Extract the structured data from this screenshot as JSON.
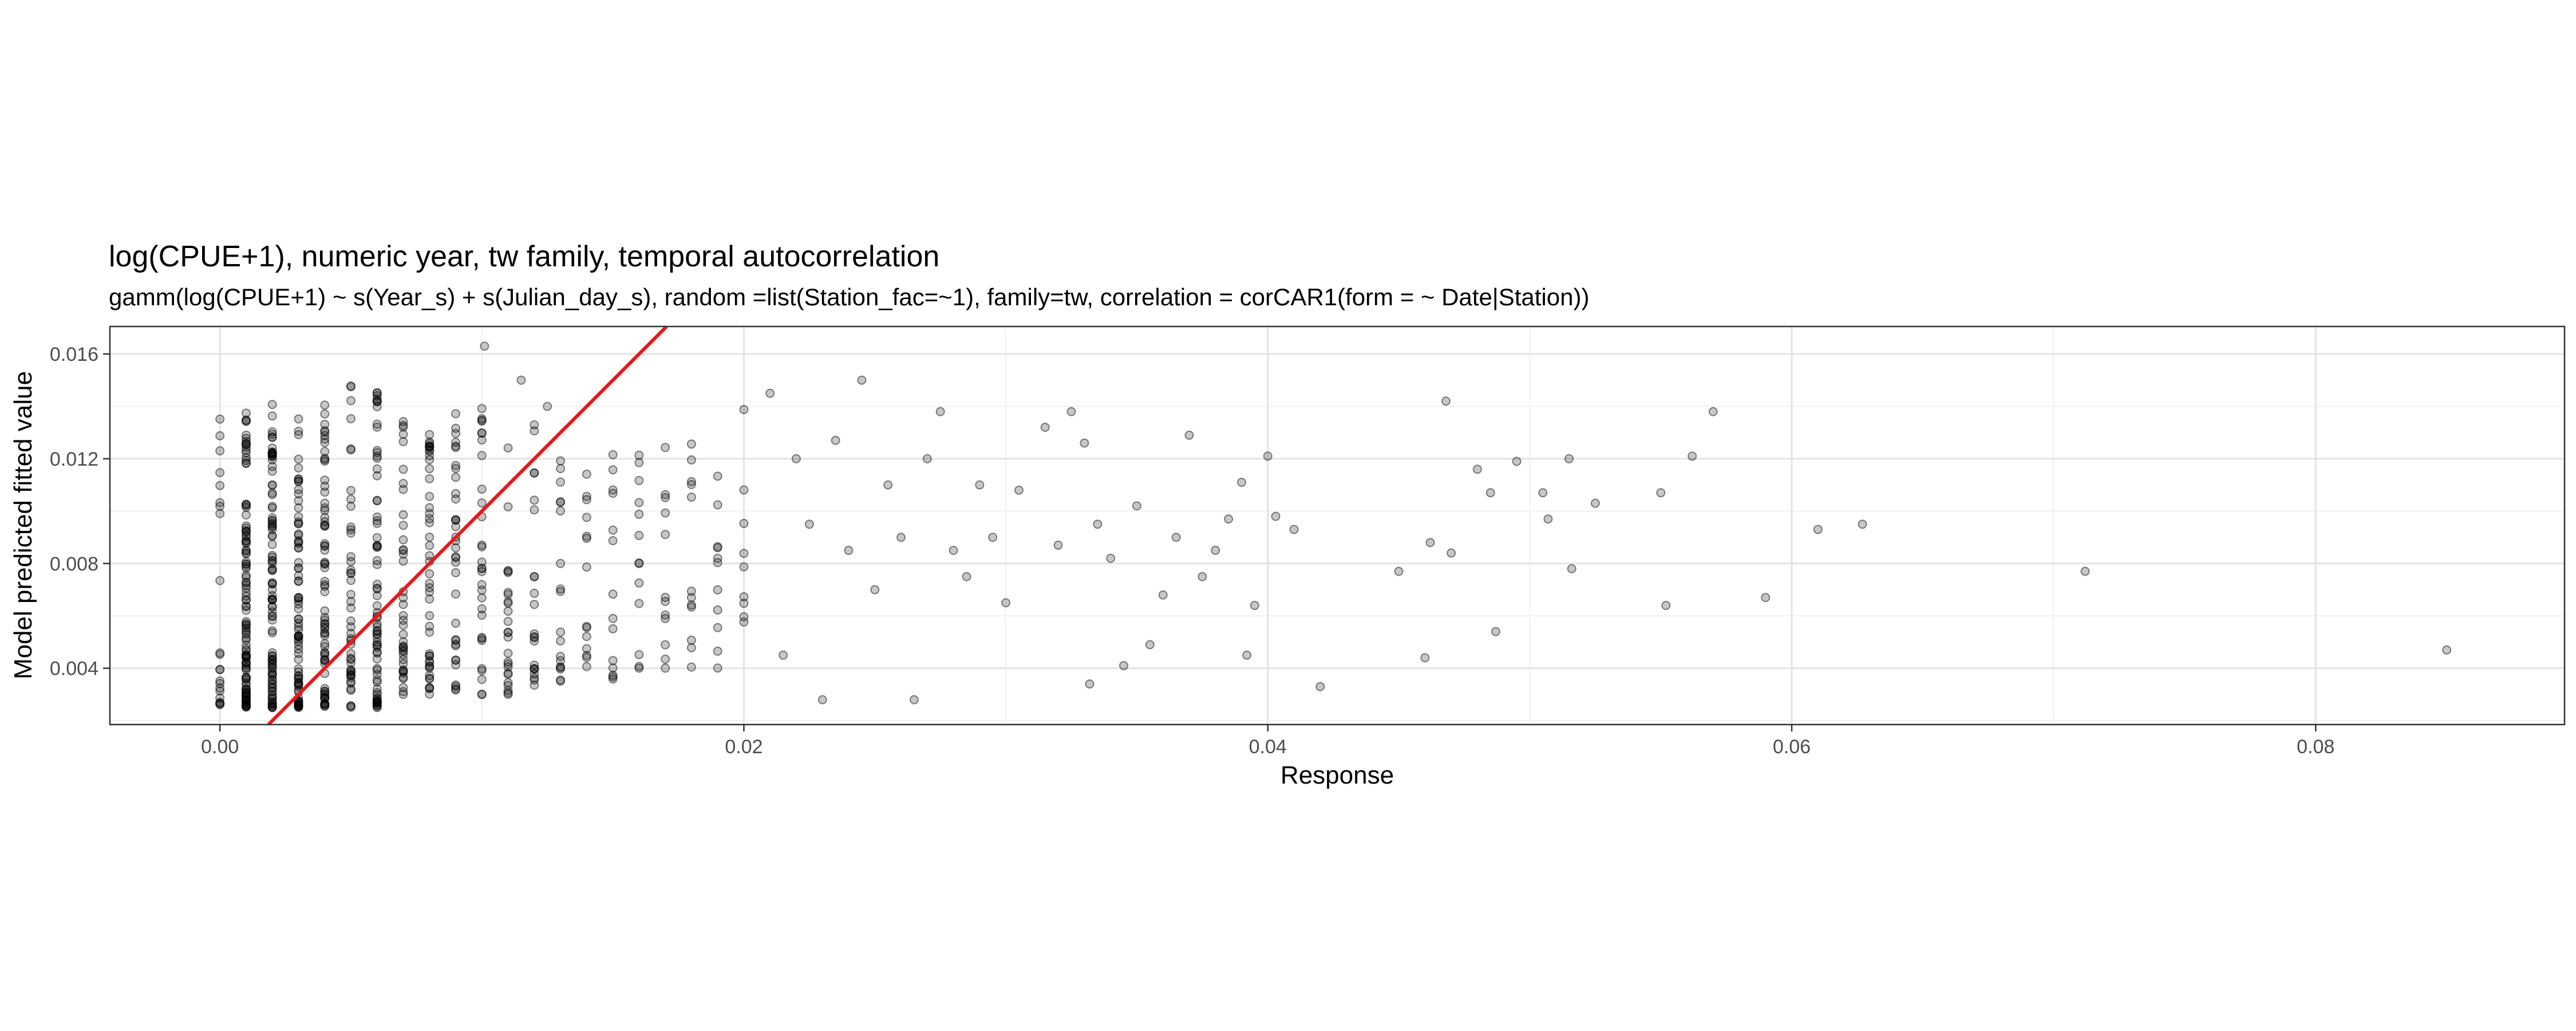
{
  "chart_data": {
    "type": "scatter",
    "title": "log(CPUE+1), numeric year, tw family, temporal autocorrelation",
    "subtitle": "gamm(log(CPUE+1) ~ s(Year_s) + s(Julian_day_s), random =list(Station_fac=~1), family=tw, correlation = corCAR1(form = ~ Date|Station))",
    "xlabel": "Response",
    "ylabel": "Model predicted fitted value",
    "xlim": [
      -0.0042,
      0.0895
    ],
    "ylim": [
      0.00185,
      0.01705
    ],
    "x_ticks": [
      0.0,
      0.02,
      0.04,
      0.06,
      0.08
    ],
    "x_tick_labels": [
      "0.00",
      "0.02",
      "0.04",
      "0.06",
      "0.08"
    ],
    "y_ticks": [
      0.004,
      0.008,
      0.012,
      0.016
    ],
    "y_tick_labels": [
      "0.004",
      "0.008",
      "0.012",
      "0.016"
    ],
    "grid": true,
    "reference_line": {
      "slope": 1,
      "intercept": 0,
      "color": "#e41a1c"
    },
    "point_color": "#000000",
    "point_alpha": 0.22,
    "columns": [
      {
        "x": 0.0,
        "n": 22,
        "ymin": 0.0026,
        "ymax": 0.0138
      },
      {
        "x": 0.001,
        "n": 110,
        "ymin": 0.0025,
        "ymax": 0.0138
      },
      {
        "x": 0.002,
        "n": 95,
        "ymin": 0.0025,
        "ymax": 0.0142
      },
      {
        "x": 0.003,
        "n": 80,
        "ymin": 0.0025,
        "ymax": 0.0138
      },
      {
        "x": 0.004,
        "n": 70,
        "ymin": 0.0025,
        "ymax": 0.0142
      },
      {
        "x": 0.005,
        "n": 45,
        "ymin": 0.0025,
        "ymax": 0.015
      },
      {
        "x": 0.006,
        "n": 70,
        "ymin": 0.0025,
        "ymax": 0.015
      },
      {
        "x": 0.007,
        "n": 40,
        "ymin": 0.003,
        "ymax": 0.014
      },
      {
        "x": 0.008,
        "n": 45,
        "ymin": 0.003,
        "ymax": 0.0138
      },
      {
        "x": 0.009,
        "n": 35,
        "ymin": 0.003,
        "ymax": 0.014
      },
      {
        "x": 0.01,
        "n": 30,
        "ymin": 0.003,
        "ymax": 0.0142
      },
      {
        "x": 0.011,
        "n": 25,
        "ymin": 0.003,
        "ymax": 0.014
      },
      {
        "x": 0.012,
        "n": 22,
        "ymin": 0.0032,
        "ymax": 0.0138
      },
      {
        "x": 0.013,
        "n": 18,
        "ymin": 0.0035,
        "ymax": 0.015
      },
      {
        "x": 0.014,
        "n": 14,
        "ymin": 0.004,
        "ymax": 0.0132
      },
      {
        "x": 0.015,
        "n": 14,
        "ymin": 0.0035,
        "ymax": 0.0134
      },
      {
        "x": 0.016,
        "n": 13,
        "ymin": 0.004,
        "ymax": 0.0134
      },
      {
        "x": 0.017,
        "n": 12,
        "ymin": 0.004,
        "ymax": 0.0132
      },
      {
        "x": 0.018,
        "n": 12,
        "ymin": 0.004,
        "ymax": 0.0134
      },
      {
        "x": 0.019,
        "n": 11,
        "ymin": 0.004,
        "ymax": 0.0134
      },
      {
        "x": 0.02,
        "n": 9,
        "ymin": 0.005,
        "ymax": 0.015
      }
    ],
    "points": [
      [
        0.0101,
        0.0163
      ],
      [
        0.0115,
        0.015
      ],
      [
        0.0125,
        0.014
      ],
      [
        0.021,
        0.0145
      ],
      [
        0.0215,
        0.0045
      ],
      [
        0.022,
        0.012
      ],
      [
        0.0225,
        0.0095
      ],
      [
        0.023,
        0.0028
      ],
      [
        0.0235,
        0.0127
      ],
      [
        0.024,
        0.0085
      ],
      [
        0.0245,
        0.015
      ],
      [
        0.025,
        0.007
      ],
      [
        0.0255,
        0.011
      ],
      [
        0.026,
        0.009
      ],
      [
        0.0265,
        0.0028
      ],
      [
        0.027,
        0.012
      ],
      [
        0.0275,
        0.0138
      ],
      [
        0.028,
        0.0085
      ],
      [
        0.0285,
        0.0075
      ],
      [
        0.029,
        0.011
      ],
      [
        0.0295,
        0.009
      ],
      [
        0.03,
        0.0065
      ],
      [
        0.0305,
        0.0108
      ],
      [
        0.0315,
        0.0132
      ],
      [
        0.032,
        0.0087
      ],
      [
        0.0325,
        0.0138
      ],
      [
        0.033,
        0.0126
      ],
      [
        0.0332,
        0.0034
      ],
      [
        0.0335,
        0.0095
      ],
      [
        0.034,
        0.0082
      ],
      [
        0.0345,
        0.0041
      ],
      [
        0.035,
        0.0102
      ],
      [
        0.0355,
        0.0049
      ],
      [
        0.036,
        0.0068
      ],
      [
        0.0365,
        0.009
      ],
      [
        0.037,
        0.0129
      ],
      [
        0.0375,
        0.0075
      ],
      [
        0.038,
        0.0085
      ],
      [
        0.0385,
        0.0097
      ],
      [
        0.039,
        0.0111
      ],
      [
        0.0392,
        0.0045
      ],
      [
        0.0395,
        0.0064
      ],
      [
        0.04,
        0.0121
      ],
      [
        0.0403,
        0.0098
      ],
      [
        0.041,
        0.0093
      ],
      [
        0.042,
        0.0033
      ],
      [
        0.045,
        0.0077
      ],
      [
        0.046,
        0.0044
      ],
      [
        0.0462,
        0.0088
      ],
      [
        0.0468,
        0.0142
      ],
      [
        0.047,
        0.0084
      ],
      [
        0.048,
        0.0116
      ],
      [
        0.0485,
        0.0107
      ],
      [
        0.0487,
        0.0054
      ],
      [
        0.0495,
        0.0119
      ],
      [
        0.0505,
        0.0107
      ],
      [
        0.0507,
        0.0097
      ],
      [
        0.0515,
        0.012
      ],
      [
        0.0516,
        0.0078
      ],
      [
        0.0525,
        0.0103
      ],
      [
        0.055,
        0.0107
      ],
      [
        0.0552,
        0.0064
      ],
      [
        0.0562,
        0.0121
      ],
      [
        0.057,
        0.0138
      ],
      [
        0.059,
        0.0067
      ],
      [
        0.061,
        0.0093
      ],
      [
        0.0627,
        0.0095
      ],
      [
        0.0712,
        0.0077
      ],
      [
        0.085,
        0.0047
      ]
    ]
  }
}
